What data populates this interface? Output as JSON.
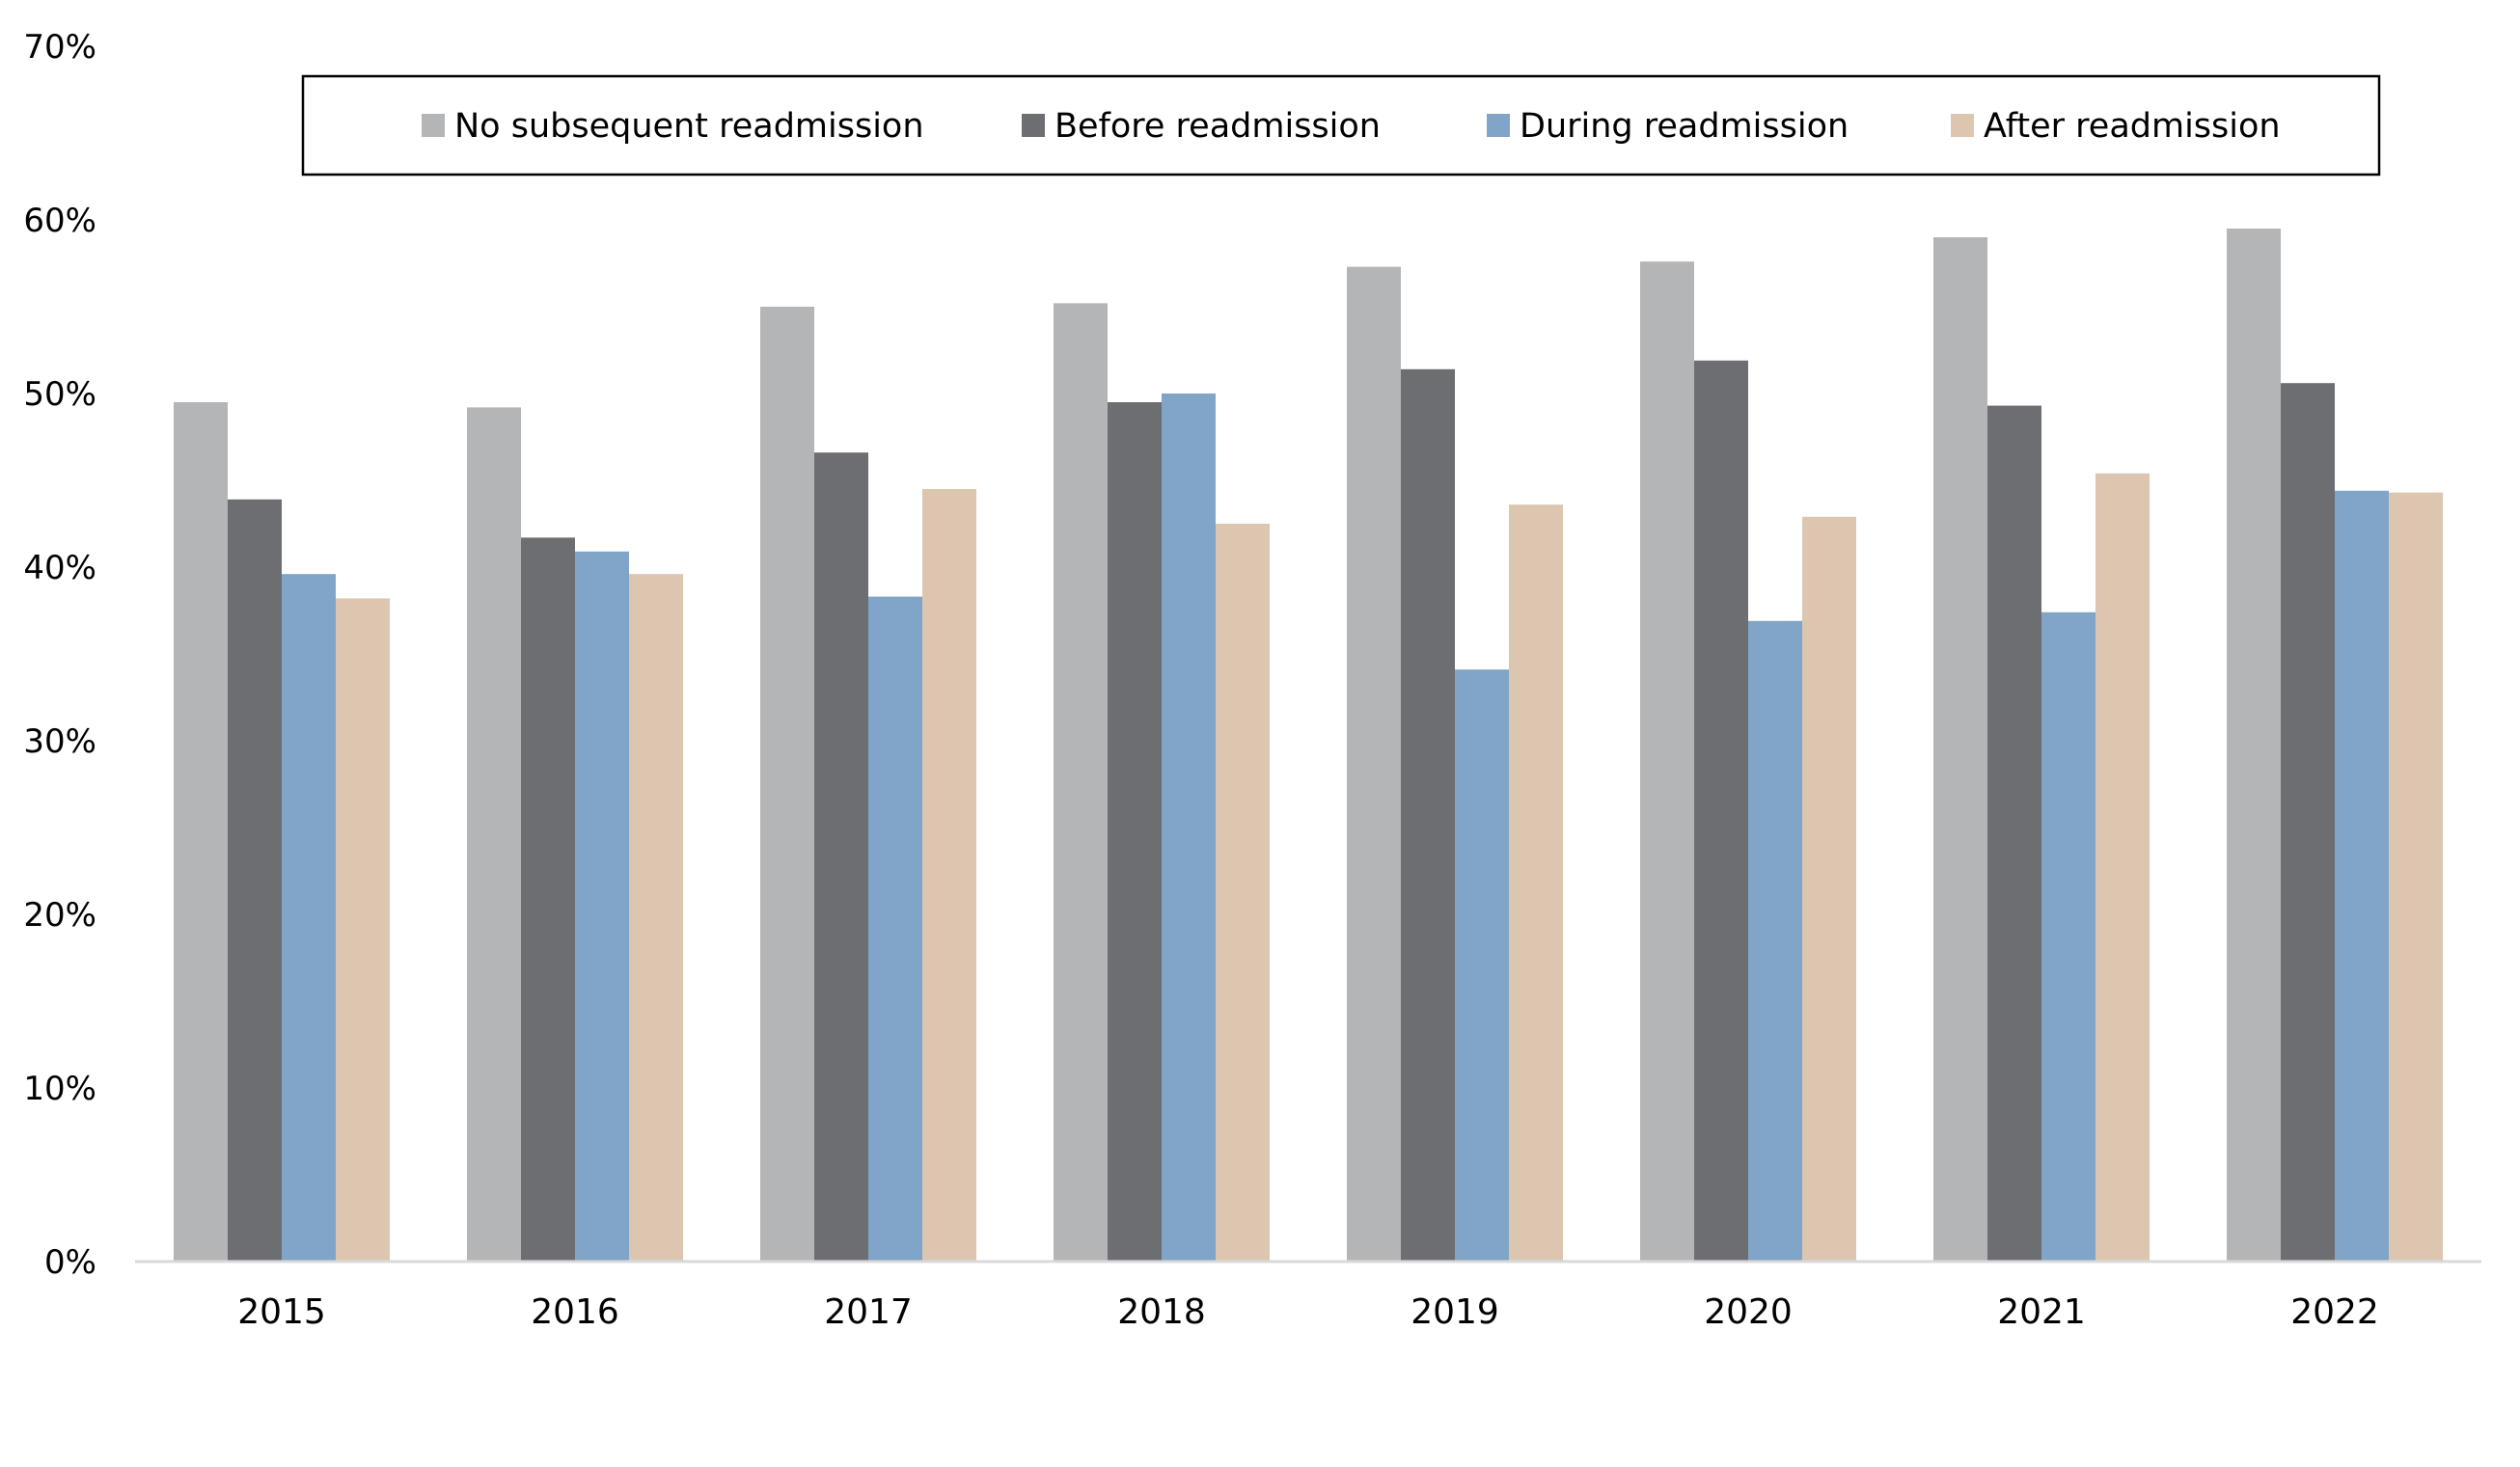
{
  "chart_data": {
    "type": "bar",
    "title": "",
    "xlabel": "",
    "ylabel": "",
    "categories": [
      "2015",
      "2016",
      "2017",
      "2018",
      "2019",
      "2020",
      "2021",
      "2022"
    ],
    "series": [
      {
        "name": "No subsequent readmission",
        "color": "#b4b5b7",
        "values": [
          49.5,
          49.2,
          55.0,
          55.2,
          57.3,
          57.6,
          59.0,
          59.5
        ]
      },
      {
        "name": "Before readmission",
        "color": "#6d6e72",
        "values": [
          43.9,
          41.7,
          46.6,
          49.5,
          51.4,
          51.9,
          49.3,
          50.6
        ]
      },
      {
        "name": "During readmission",
        "color": "#80a5c8",
        "values": [
          39.6,
          40.9,
          38.3,
          50.0,
          34.1,
          36.9,
          37.4,
          44.4
        ]
      },
      {
        "name": "After readmission",
        "color": "#dcc6b0",
        "values": [
          38.2,
          39.6,
          44.5,
          42.5,
          43.6,
          42.9,
          45.4,
          44.3
        ]
      }
    ],
    "ylim": [
      0,
      70
    ],
    "yticks": [
      0,
      10,
      20,
      30,
      40,
      50,
      60,
      70
    ],
    "ytick_labels": [
      "0%",
      "10%",
      "20%",
      "30%",
      "40%",
      "50%",
      "60%",
      "70%"
    ],
    "grid": false,
    "legend_position": "top"
  }
}
